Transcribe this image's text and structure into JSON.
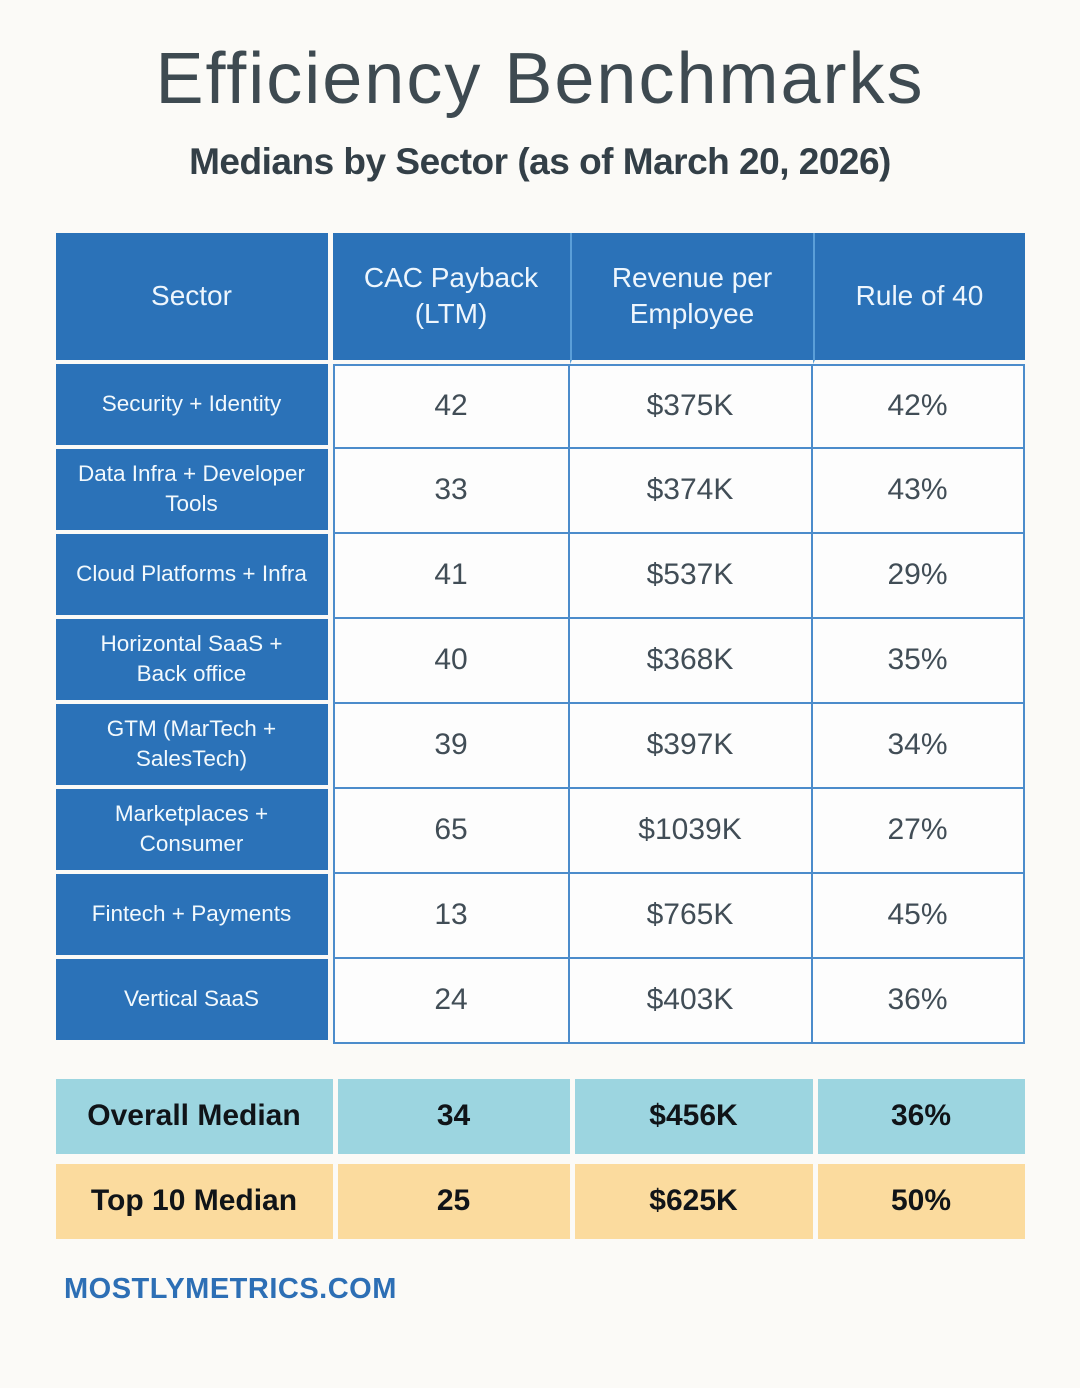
{
  "page": {
    "title": "Efficiency Benchmarks",
    "subtitle": "Medians by Sector (as of March 20, 2026)",
    "footer": "MOSTLYMETRICS.COM"
  },
  "colors": {
    "header_blue": "#2b72b8",
    "grid_blue": "#4c8ccb",
    "summary_teal": "#9cd5e0",
    "summary_sand": "#fbdb9e",
    "footer_blue": "#2d6fb5",
    "title_slate": "#3e4a51",
    "background": "#fbfaf7"
  },
  "chart_data": {
    "type": "table",
    "title": "Efficiency Benchmarks",
    "subtitle": "Medians by Sector (as of March 20, 2026)",
    "columns": [
      "Sector",
      "CAC Payback (LTM)",
      "Revenue per Employee",
      "Rule of 40"
    ],
    "rows": [
      {
        "sector": "Security + Identity",
        "cac": "42",
        "rpe": "$375K",
        "rule40": "42%"
      },
      {
        "sector": "Data Infra + Developer Tools",
        "cac": "33",
        "rpe": "$374K",
        "rule40": "43%"
      },
      {
        "sector": "Cloud Platforms + Infra",
        "cac": "41",
        "rpe": "$537K",
        "rule40": "29%"
      },
      {
        "sector": "Horizontal SaaS + Back office",
        "cac": "40",
        "rpe": "$368K",
        "rule40": "35%"
      },
      {
        "sector": "GTM (MarTech + SalesTech)",
        "cac": "39",
        "rpe": "$397K",
        "rule40": "34%"
      },
      {
        "sector": "Marketplaces + Consumer",
        "cac": "65",
        "rpe": "$1039K",
        "rule40": "27%"
      },
      {
        "sector": "Fintech + Payments",
        "cac": "13",
        "rpe": "$765K",
        "rule40": "45%"
      },
      {
        "sector": "Vertical SaaS",
        "cac": "24",
        "rpe": "$403K",
        "rule40": "36%"
      }
    ],
    "summary": [
      {
        "label": "Overall Median",
        "cac": "34",
        "rpe": "$456K",
        "rule40": "36%"
      },
      {
        "label": "Top 10 Median",
        "cac": "25",
        "rpe": "$625K",
        "rule40": "50%"
      }
    ]
  }
}
